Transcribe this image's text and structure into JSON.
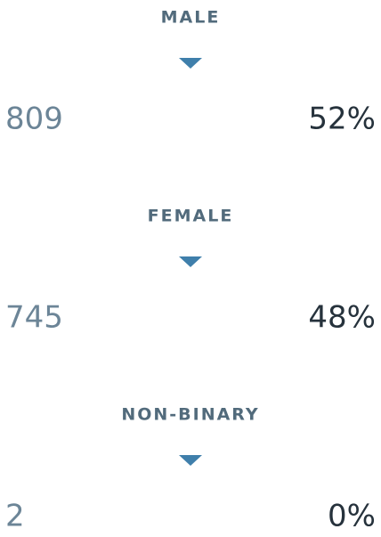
{
  "groups": [
    {
      "label": "MALE",
      "count": "809",
      "percent": "52%"
    },
    {
      "label": "FEMALE",
      "count": "745",
      "percent": "48%"
    },
    {
      "label": "NON-BINARY",
      "count": "2",
      "percent": "0%"
    }
  ]
}
